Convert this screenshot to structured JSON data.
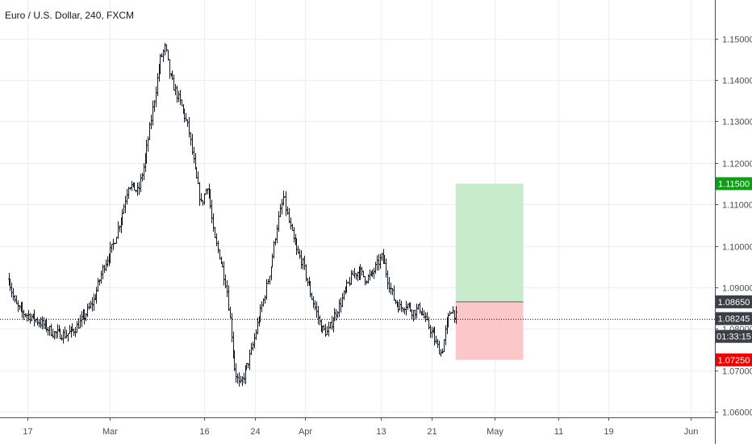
{
  "header": {
    "title": "Euro / U.S. Dollar, 240, FXCM"
  },
  "chart_data": {
    "type": "ohlc",
    "symbol": "Euro / U.S. Dollar",
    "timeframe": "240",
    "source": "FXCM",
    "ylim": [
      1.06,
      1.155
    ],
    "price_ticks": [
      "1.15000",
      "1.14000",
      "1.13000",
      "1.12000",
      "1.11000",
      "1.10000",
      "1.09000",
      "1.08000",
      "1.07000",
      "1.06000"
    ],
    "date_ticks": [
      {
        "label": "17",
        "day": 17
      },
      {
        "label": "Mar",
        "day": 30
      },
      {
        "label": "16",
        "day": 45
      },
      {
        "label": "24",
        "day": 53
      },
      {
        "label": "Apr",
        "day": 61
      },
      {
        "label": "13",
        "day": 73
      },
      {
        "label": "21",
        "day": 81
      },
      {
        "label": "May",
        "day": 91
      },
      {
        "label": "11",
        "day": 101
      },
      {
        "label": "19",
        "day": 109
      },
      {
        "label": "Jun",
        "day": 122
      }
    ],
    "xlim_days": [
      14,
      124
    ],
    "price_path": [
      [
        14.0,
        1.092
      ],
      [
        15.0,
        1.086
      ],
      [
        16.0,
        1.084
      ],
      [
        17.5,
        1.083
      ],
      [
        19.5,
        1.081
      ],
      [
        21.0,
        1.079
      ],
      [
        23.0,
        1.0785
      ],
      [
        24.5,
        1.08
      ],
      [
        26.0,
        1.083
      ],
      [
        27.5,
        1.087
      ],
      [
        29.0,
        1.095
      ],
      [
        30.5,
        1.1
      ],
      [
        32.0,
        1.108
      ],
      [
        33.0,
        1.115
      ],
      [
        34.5,
        1.113
      ],
      [
        35.5,
        1.12
      ],
      [
        37.0,
        1.135
      ],
      [
        38.0,
        1.145
      ],
      [
        38.8,
        1.148
      ],
      [
        39.5,
        1.141
      ],
      [
        40.5,
        1.137
      ],
      [
        41.5,
        1.133
      ],
      [
        42.5,
        1.128
      ],
      [
        43.5,
        1.118
      ],
      [
        44.5,
        1.11
      ],
      [
        45.5,
        1.115
      ],
      [
        46.5,
        1.102
      ],
      [
        47.5,
        1.097
      ],
      [
        48.5,
        1.09
      ],
      [
        49.2,
        1.08
      ],
      [
        49.8,
        1.07
      ],
      [
        50.6,
        1.066
      ],
      [
        51.5,
        1.07
      ],
      [
        52.5,
        1.075
      ],
      [
        53.5,
        1.082
      ],
      [
        54.5,
        1.088
      ],
      [
        55.5,
        1.095
      ],
      [
        56.5,
        1.105
      ],
      [
        57.5,
        1.112
      ],
      [
        58.5,
        1.105
      ],
      [
        59.5,
        1.099
      ],
      [
        60.5,
        1.096
      ],
      [
        61.5,
        1.09
      ],
      [
        62.5,
        1.085
      ],
      [
        63.5,
        1.08
      ],
      [
        64.5,
        1.079
      ],
      [
        65.5,
        1.083
      ],
      [
        66.5,
        1.086
      ],
      [
        67.5,
        1.09
      ],
      [
        68.5,
        1.093
      ],
      [
        69.5,
        1.094
      ],
      [
        70.5,
        1.092
      ],
      [
        71.5,
        1.093
      ],
      [
        72.5,
        1.096
      ],
      [
        73.2,
        1.0975
      ],
      [
        74.0,
        1.092
      ],
      [
        75.0,
        1.087
      ],
      [
        76.0,
        1.085
      ],
      [
        77.0,
        1.086
      ],
      [
        78.0,
        1.084
      ],
      [
        79.0,
        1.085
      ],
      [
        80.0,
        1.082
      ],
      [
        81.0,
        1.079
      ],
      [
        81.8,
        1.076
      ],
      [
        82.5,
        1.074
      ],
      [
        83.2,
        1.08
      ],
      [
        84.0,
        1.085
      ],
      [
        84.8,
        1.083
      ]
    ],
    "last_price": 1.08245,
    "position": {
      "type": "long",
      "start_day": 84.8,
      "end_day": 95.5,
      "entry": 1.0865,
      "target": 1.115,
      "stop": 1.0725
    },
    "labels": {
      "target": "1.11500",
      "entry": "1.08650",
      "last": "1.08245",
      "countdown": "01:33:15",
      "stop": "1.07250"
    },
    "colors": {
      "bar": "#131722",
      "profit_zone": "#c8ebcb",
      "loss_zone": "#fbc7c9",
      "profit_tag": "#089981",
      "loss_tag": "#f23645",
      "target_tag": "#0d9e13",
      "stop_tag": "#ef0000",
      "price_tag": "#3d3f47",
      "grid": "#ebeef2",
      "axis": "#4a4e5a"
    }
  }
}
